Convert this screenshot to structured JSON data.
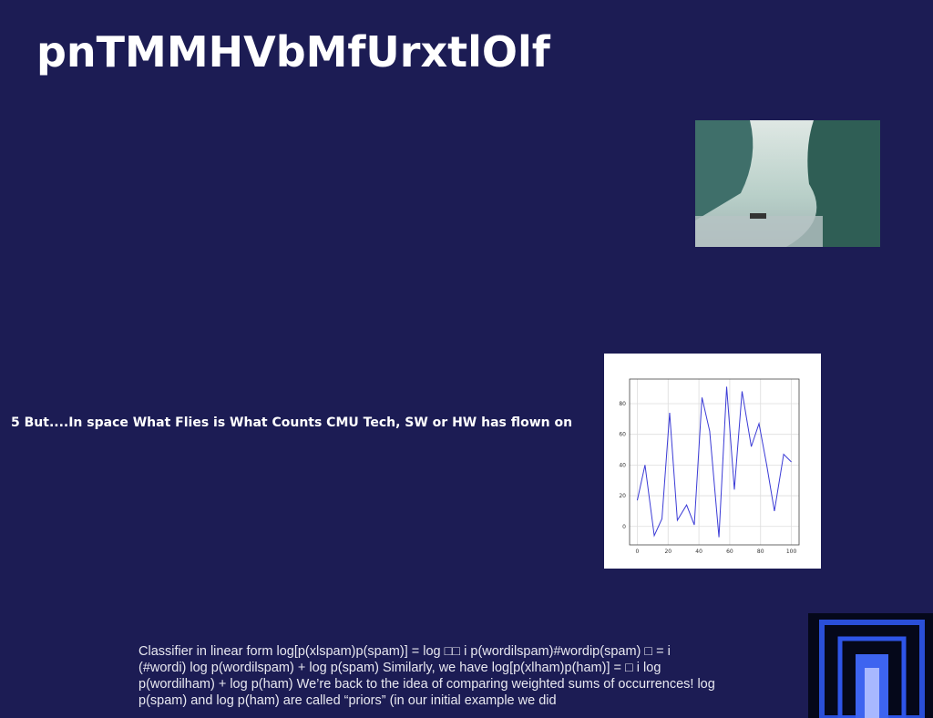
{
  "title": "pnTMMHVbMfUrxtlOlf",
  "caption": "5 But....In space What Flies is What Counts CMU Tech, SW or HW has flown on",
  "body": "Classifier in linear form log[p(xlspam)p(spam)] = log □□ i p(wordilspam)#wordip(spam) □ = i (#wordi) log p(wordilspam) + log p(spam) Similarly, we have log[p(xlham)p(ham)] = □ i log p(wordilham) + log p(ham) We’re back to the idea of comparing weighted sums of occurrences! log p(spam) and log p(ham) are called “priors” (in our initial example we did",
  "chart_data": {
    "type": "line",
    "x": [
      0,
      5,
      11,
      16,
      21,
      26,
      32,
      37,
      42,
      47,
      53,
      58,
      63,
      68,
      74,
      79,
      84,
      89,
      95,
      100
    ],
    "values": [
      17,
      40,
      -6,
      5,
      74,
      4,
      14,
      1,
      84,
      62,
      -7,
      91,
      24,
      88,
      52,
      67,
      40,
      10,
      47,
      42
    ],
    "color": "#3b3bd6",
    "xlim": [
      -5,
      105
    ],
    "ylim": [
      -12,
      96
    ],
    "xticks": [
      0,
      20,
      40,
      60,
      80,
      100
    ],
    "yticks": [
      0,
      20,
      40,
      60,
      80
    ],
    "grid": true
  }
}
